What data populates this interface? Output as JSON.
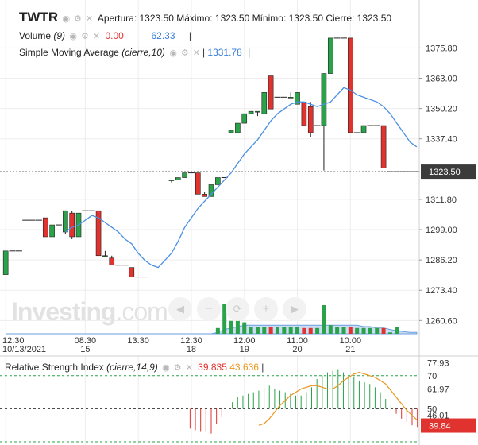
{
  "header": {
    "ticker": "TWTR",
    "ohlc": "Apertura: 1323.50 Máximo: 1323.50 Mínimo: 1323.50 Cierre: 1323.50",
    "volume_label": "Volume",
    "volume_param": "(9)",
    "volume_val1": "0.00",
    "volume_val2": "62.33",
    "sma_label": "Simple Moving Average",
    "sma_param": "(cierre,10)",
    "sma_val": "1331.78"
  },
  "watermark": {
    "brand": "Investing",
    "suffix": ".com"
  },
  "rsi_header": {
    "label": "Relative Strength Index",
    "param": "(cierre,14,9)",
    "val1": "39.835",
    "val2": "43.636"
  },
  "colors": {
    "up": "#2aa24a",
    "down": "#e0322f",
    "sma": "#4a90e2",
    "volume_fill": "#a9c7ef",
    "rsi": "#e8961e",
    "price_tag": "#3b3b3b"
  },
  "chart_data": [
    {
      "type": "candlestick",
      "title": "TWTR",
      "ylim": [
        1255,
        1384
      ],
      "y_ticks": [
        "1375.80",
        "1363.00",
        "1350.20",
        "1337.40",
        "1311.80",
        "1299.00",
        "1286.20",
        "1273.40",
        "1260.60"
      ],
      "current_price": "1323.50",
      "x_ticks": [
        {
          "top": "12:30",
          "bottom": "10/13/2021",
          "index": 0
        },
        {
          "top": "08:30",
          "bottom": "15",
          "index": 12
        },
        {
          "top": "13:30",
          "bottom": "",
          "index": 20
        },
        {
          "top": "12:30",
          "bottom": "18",
          "index": 28
        },
        {
          "top": "12:00",
          "bottom": "19",
          "index": 36
        },
        {
          "top": "11:00",
          "bottom": "20",
          "index": 44
        },
        {
          "top": "10:00",
          "bottom": "21",
          "index": 52
        }
      ],
      "candles": [
        {
          "o": 1280,
          "h": 1290,
          "l": 1280,
          "c": 1290
        },
        {
          "o": 1290,
          "h": 1290,
          "l": 1290,
          "c": 1290
        },
        {
          "o": 1290,
          "h": 1290,
          "l": 1290,
          "c": 1290
        },
        {
          "o": 1303,
          "h": 1303,
          "l": 1303,
          "c": 1303
        },
        {
          "o": 1303,
          "h": 1303,
          "l": 1303,
          "c": 1303
        },
        {
          "o": 1303,
          "h": 1303,
          "l": 1303,
          "c": 1303
        },
        {
          "o": 1304,
          "h": 1304,
          "l": 1296,
          "c": 1296
        },
        {
          "o": 1296,
          "h": 1301,
          "l": 1296,
          "c": 1301
        },
        {
          "o": 1301,
          "h": 1301,
          "l": 1301,
          "c": 1301
        },
        {
          "o": 1298,
          "h": 1307,
          "l": 1297,
          "c": 1307
        },
        {
          "o": 1306,
          "h": 1307,
          "l": 1295,
          "c": 1296
        },
        {
          "o": 1296,
          "h": 1306,
          "l": 1296,
          "c": 1306
        },
        {
          "o": 1307,
          "h": 1307,
          "l": 1307,
          "c": 1307
        },
        {
          "o": 1307,
          "h": 1307,
          "l": 1307,
          "c": 1307
        },
        {
          "o": 1307,
          "h": 1307,
          "l": 1288,
          "c": 1288
        },
        {
          "o": 1288,
          "h": 1290,
          "l": 1288,
          "c": 1288
        },
        {
          "o": 1287,
          "h": 1288,
          "l": 1284,
          "c": 1284
        },
        {
          "o": 1284,
          "h": 1284,
          "l": 1284,
          "c": 1284
        },
        {
          "o": 1284,
          "h": 1284,
          "l": 1284,
          "c": 1284
        },
        {
          "o": 1283,
          "h": 1283,
          "l": 1279,
          "c": 1279
        },
        {
          "o": 1279,
          "h": 1279,
          "l": 1279,
          "c": 1279
        },
        {
          "o": 1279,
          "h": 1279,
          "l": 1279,
          "c": 1279
        },
        {
          "o": 1320,
          "h": 1320,
          "l": 1320,
          "c": 1320
        },
        {
          "o": 1320,
          "h": 1320,
          "l": 1320,
          "c": 1320
        },
        {
          "o": 1320,
          "h": 1320,
          "l": 1320,
          "c": 1320
        },
        {
          "o": 1320,
          "h": 1320,
          "l": 1319,
          "c": 1320
        },
        {
          "o": 1320,
          "h": 1321,
          "l": 1320,
          "c": 1321
        },
        {
          "o": 1321,
          "h": 1323,
          "l": 1321,
          "c": 1323
        },
        {
          "o": 1323,
          "h": 1323,
          "l": 1323,
          "c": 1323
        },
        {
          "o": 1323,
          "h": 1323,
          "l": 1314,
          "c": 1314
        },
        {
          "o": 1314,
          "h": 1315,
          "l": 1313,
          "c": 1313
        },
        {
          "o": 1313,
          "h": 1318,
          "l": 1313,
          "c": 1318
        },
        {
          "o": 1318,
          "h": 1321,
          "l": 1318,
          "c": 1321
        },
        {
          "o": 1321,
          "h": 1321,
          "l": 1321,
          "c": 1321
        },
        {
          "o": 1340,
          "h": 1341,
          "l": 1340,
          "c": 1341
        },
        {
          "o": 1340,
          "h": 1344,
          "l": 1340,
          "c": 1344
        },
        {
          "o": 1344,
          "h": 1348,
          "l": 1344,
          "c": 1348
        },
        {
          "o": 1348,
          "h": 1349,
          "l": 1348,
          "c": 1349
        },
        {
          "o": 1349,
          "h": 1349,
          "l": 1347,
          "c": 1349
        },
        {
          "o": 1348,
          "h": 1357,
          "l": 1348,
          "c": 1357
        },
        {
          "o": 1364,
          "h": 1364,
          "l": 1350,
          "c": 1350
        },
        {
          "o": 1355,
          "h": 1355,
          "l": 1355,
          "c": 1355
        },
        {
          "o": 1355,
          "h": 1355,
          "l": 1355,
          "c": 1355
        },
        {
          "o": 1355,
          "h": 1357,
          "l": 1355,
          "c": 1355
        },
        {
          "o": 1352,
          "h": 1357,
          "l": 1352,
          "c": 1357
        },
        {
          "o": 1353,
          "h": 1353,
          "l": 1343,
          "c": 1343
        },
        {
          "o": 1351,
          "h": 1353,
          "l": 1338,
          "c": 1340
        },
        {
          "o": 1343,
          "h": 1343,
          "l": 1343,
          "c": 1343
        },
        {
          "o": 1343,
          "h": 1365,
          "l": 1324,
          "c": 1365
        },
        {
          "o": 1365,
          "h": 1380,
          "l": 1365,
          "c": 1380
        },
        {
          "o": 1380,
          "h": 1380,
          "l": 1380,
          "c": 1380
        },
        {
          "o": 1380,
          "h": 1380,
          "l": 1380,
          "c": 1380
        },
        {
          "o": 1380,
          "h": 1380,
          "l": 1340,
          "c": 1340
        },
        {
          "o": 1340,
          "h": 1340,
          "l": 1340,
          "c": 1340
        },
        {
          "o": 1340,
          "h": 1343,
          "l": 1340,
          "c": 1343
        },
        {
          "o": 1343,
          "h": 1343,
          "l": 1343,
          "c": 1343
        },
        {
          "o": 1343,
          "h": 1343,
          "l": 1343,
          "c": 1343
        },
        {
          "o": 1343,
          "h": 1343,
          "l": 1325,
          "c": 1325
        },
        {
          "o": 1323.5,
          "h": 1323.5,
          "l": 1323.5,
          "c": 1323.5
        },
        {
          "o": 1323.5,
          "h": 1323.5,
          "l": 1323.5,
          "c": 1323.5
        },
        {
          "o": 1323.5,
          "h": 1323.5,
          "l": 1323.5,
          "c": 1323.5
        },
        {
          "o": 1323.5,
          "h": 1323.5,
          "l": 1323.5,
          "c": 1323.5
        },
        {
          "o": 1323.5,
          "h": 1323.5,
          "l": 1323.5,
          "c": 1323.5
        }
      ],
      "sma": [
        null,
        null,
        null,
        null,
        null,
        null,
        null,
        null,
        null,
        1298,
        1300,
        1301,
        1303,
        1305,
        1304,
        1302,
        1300,
        1298,
        1295,
        1293,
        1289,
        1286,
        1284,
        1283,
        1286,
        1289,
        1294,
        1300,
        1304,
        1308,
        1311,
        1314,
        1317,
        1320,
        1323,
        1327,
        1331,
        1334,
        1337,
        1341,
        1345,
        1348,
        1350,
        1352,
        1353,
        1353,
        1352,
        1351,
        1352,
        1353,
        1356,
        1359,
        1358,
        1356,
        1355,
        1354,
        1353,
        1351,
        1348,
        1344,
        1340,
        1336,
        1334
      ],
      "volume": [
        0,
        0,
        0,
        0,
        0,
        0,
        0,
        0,
        0,
        0,
        0,
        0,
        0,
        0,
        0,
        0,
        0,
        0,
        0,
        0,
        0,
        0,
        0,
        0,
        0,
        0,
        0,
        0,
        0,
        0,
        0,
        0,
        8,
        42,
        18,
        30,
        16,
        10,
        10,
        10,
        10,
        10,
        10,
        10,
        10,
        8,
        8,
        8,
        40,
        12,
        10,
        10,
        10,
        8,
        8,
        8,
        8,
        8,
        2,
        10,
        0,
        0,
        0
      ],
      "volume_avg": [
        0,
        0,
        0,
        0,
        0,
        0,
        0,
        0,
        0,
        0,
        0,
        0,
        0,
        0,
        0,
        0,
        0,
        0,
        0,
        0,
        0,
        0,
        0,
        0,
        0,
        0,
        0,
        0,
        0,
        0,
        0,
        0,
        2,
        6,
        8,
        10,
        12,
        12,
        12,
        12,
        12,
        12,
        12,
        12,
        12,
        12,
        12,
        12,
        12,
        12,
        12,
        12,
        12,
        12,
        10,
        10,
        8,
        8,
        6,
        4,
        3,
        2,
        2
      ]
    },
    {
      "type": "line",
      "title": "Relative Strength Index",
      "ylim": [
        30,
        80
      ],
      "y_ticks": [
        "77.93",
        "70",
        "61.97",
        "50",
        "46.01"
      ],
      "current_value": "39.84",
      "rsi_line": [
        null,
        null,
        null,
        null,
        null,
        null,
        null,
        null,
        null,
        null,
        null,
        null,
        null,
        null,
        null,
        null,
        null,
        null,
        null,
        null,
        null,
        null,
        null,
        null,
        null,
        null,
        null,
        null,
        null,
        null,
        null,
        null,
        null,
        null,
        null,
        38,
        37,
        36,
        36,
        35,
        41,
        45,
        50,
        54,
        57,
        58,
        59,
        60,
        61,
        63,
        64,
        62,
        61,
        60,
        59,
        58,
        58,
        60,
        63,
        68,
        70,
        72,
        73,
        74,
        72,
        70,
        69,
        67,
        66,
        65,
        63,
        60,
        56,
        52,
        47,
        44,
        42,
        40,
        39
      ],
      "rsi_signal": [
        null,
        null,
        null,
        null,
        null,
        null,
        null,
        null,
        null,
        null,
        null,
        null,
        null,
        null,
        null,
        null,
        null,
        null,
        null,
        null,
        null,
        null,
        null,
        null,
        null,
        null,
        null,
        null,
        null,
        null,
        null,
        null,
        null,
        null,
        null,
        null,
        null,
        null,
        null,
        null,
        null,
        null,
        null,
        null,
        null,
        null,
        null,
        null,
        40,
        41,
        44,
        48,
        52,
        55,
        58,
        60,
        62,
        63,
        64,
        64,
        63,
        62,
        62,
        64,
        67,
        69,
        71,
        72,
        71,
        70,
        69,
        67,
        65,
        61,
        57,
        53,
        49,
        46,
        43
      ]
    }
  ]
}
